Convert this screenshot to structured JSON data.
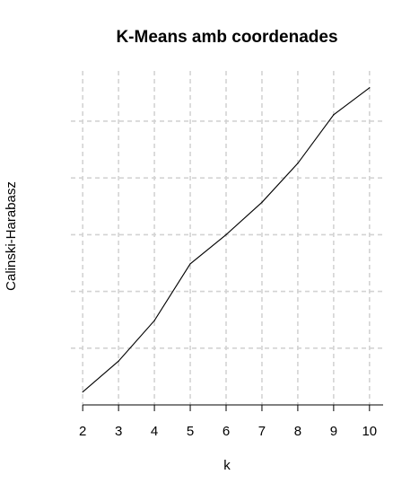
{
  "chart_data": {
    "type": "line",
    "title": "K-Means amb coordenades",
    "xlabel": "k",
    "ylabel": "Calinski-Harabasz",
    "x": [
      2,
      3,
      4,
      5,
      6,
      7,
      8,
      9,
      10
    ],
    "y": [
      0.4,
      1.35,
      2.6,
      4.35,
      5.25,
      6.25,
      7.45,
      8.95,
      9.78
    ],
    "xlim": [
      1.67,
      10.38
    ],
    "ylim": [
      0,
      10.3
    ],
    "xticks": [
      2,
      3,
      4,
      5,
      6,
      7,
      8,
      9,
      10
    ],
    "ygrid": [
      1.75,
      3.5,
      5.25,
      7.0,
      8.75
    ],
    "grid": true,
    "y_tick_labels_shown": false,
    "colors": {
      "line": "#000000",
      "grid": "#d3d3d3"
    }
  }
}
